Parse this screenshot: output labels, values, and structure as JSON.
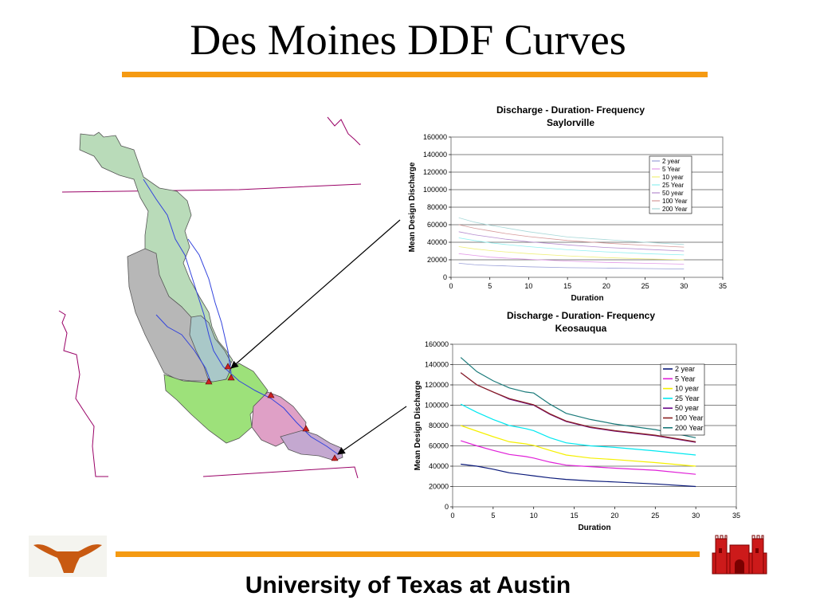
{
  "slide": {
    "title": "Des Moines DDF Curves",
    "footer": "University of Texas at Austin",
    "accent_color": "#f59a12"
  },
  "logos": {
    "left": "longhorn-logo",
    "right": "castle-logo"
  },
  "chart_data": [
    {
      "type": "line",
      "title": "Discharge - Duration- Frequency",
      "subtitle": "Saylorville",
      "xlabel": "Duration",
      "ylabel": "Mean Design Discharge",
      "xlim": [
        0,
        35
      ],
      "ylim": [
        0,
        160000
      ],
      "xticks": [
        "0",
        "5",
        "10",
        "15",
        "20",
        "25",
        "30",
        "35"
      ],
      "yticks": [
        "0",
        "20000",
        "40000",
        "60000",
        "80000",
        "100000",
        "120000",
        "140000",
        "160000"
      ],
      "grid": true,
      "legend_position": "top-right",
      "x": [
        1,
        3,
        5,
        7,
        10,
        15,
        20,
        25,
        30
      ],
      "series": [
        {
          "name": "2 year",
          "color": "#9aa0d8",
          "values": [
            16000,
            14500,
            13500,
            13000,
            12000,
            11000,
            10500,
            10000,
            9500
          ]
        },
        {
          "name": "5 Year",
          "color": "#e39ae8",
          "values": [
            27000,
            25000,
            23000,
            22000,
            20500,
            18500,
            17000,
            16000,
            15000
          ]
        },
        {
          "name": "10 year",
          "color": "#f0f07c",
          "values": [
            35000,
            32500,
            30500,
            29000,
            27000,
            24500,
            22500,
            21000,
            20000
          ]
        },
        {
          "name": "25 Year",
          "color": "#8ff0f0",
          "values": [
            45000,
            42000,
            39500,
            37500,
            35000,
            31500,
            29000,
            27000,
            25500
          ]
        },
        {
          "name": "50 year",
          "color": "#b58ccf",
          "values": [
            52000,
            48500,
            46000,
            43500,
            40500,
            37000,
            34000,
            32000,
            30000
          ]
        },
        {
          "name": "100 Year",
          "color": "#d69a9a",
          "values": [
            60000,
            56000,
            53000,
            50000,
            46500,
            42000,
            39000,
            36500,
            34500
          ]
        },
        {
          "name": "200 Year",
          "color": "#a8d8d8",
          "values": [
            68000,
            63000,
            59500,
            56500,
            52000,
            46000,
            43000,
            40000,
            37500
          ]
        }
      ]
    },
    {
      "type": "line",
      "title": "Discharge - Duration- Frequency",
      "subtitle": "Keosauqua",
      "xlabel": "Duration",
      "ylabel": "Mean Design Discharge",
      "xlim": [
        0,
        35
      ],
      "ylim": [
        0,
        160000
      ],
      "xticks": [
        "0",
        "5",
        "10",
        "15",
        "20",
        "25",
        "30",
        "35"
      ],
      "yticks": [
        "0",
        "20000",
        "40000",
        "60000",
        "80000",
        "100000",
        "120000",
        "140000",
        "160000"
      ],
      "grid": true,
      "legend_position": "top-right",
      "x": [
        1,
        3,
        5,
        7,
        9,
        10,
        12,
        14,
        17,
        20,
        25,
        30
      ],
      "series": [
        {
          "name": "2 year",
          "color": "#0b1a7a",
          "values": [
            42000,
            40000,
            37000,
            33500,
            31500,
            30500,
            28500,
            27000,
            25500,
            24500,
            22500,
            20000
          ]
        },
        {
          "name": "5 Year",
          "color": "#e020d8",
          "values": [
            65000,
            60000,
            55500,
            51500,
            49500,
            48000,
            44000,
            41000,
            39500,
            38000,
            36000,
            32000
          ]
        },
        {
          "name": "10 year",
          "color": "#f5f000",
          "values": [
            80000,
            74500,
            69000,
            64000,
            62000,
            60500,
            55500,
            51000,
            48000,
            46500,
            43500,
            40000
          ]
        },
        {
          "name": "25 Year",
          "color": "#00e8f0",
          "values": [
            101000,
            93000,
            86000,
            80000,
            77000,
            75000,
            68000,
            63000,
            60000,
            58500,
            55000,
            51000
          ]
        },
        {
          "name": "50 year",
          "color": "#6a0a8a",
          "values": [
            132000,
            120000,
            113000,
            106000,
            102000,
            100000,
            91000,
            84000,
            78000,
            74500,
            70000,
            63500
          ]
        },
        {
          "name": "100 Year",
          "color": "#8a2020",
          "values": [
            132000,
            120000,
            113000,
            106500,
            102500,
            100500,
            91500,
            84500,
            78500,
            75000,
            70500,
            64000
          ]
        },
        {
          "name": "200 Year",
          "color": "#1a7a7a",
          "values": [
            147000,
            133000,
            124000,
            117000,
            113000,
            112000,
            101000,
            92000,
            86000,
            81500,
            76000,
            68000
          ]
        }
      ]
    }
  ]
}
